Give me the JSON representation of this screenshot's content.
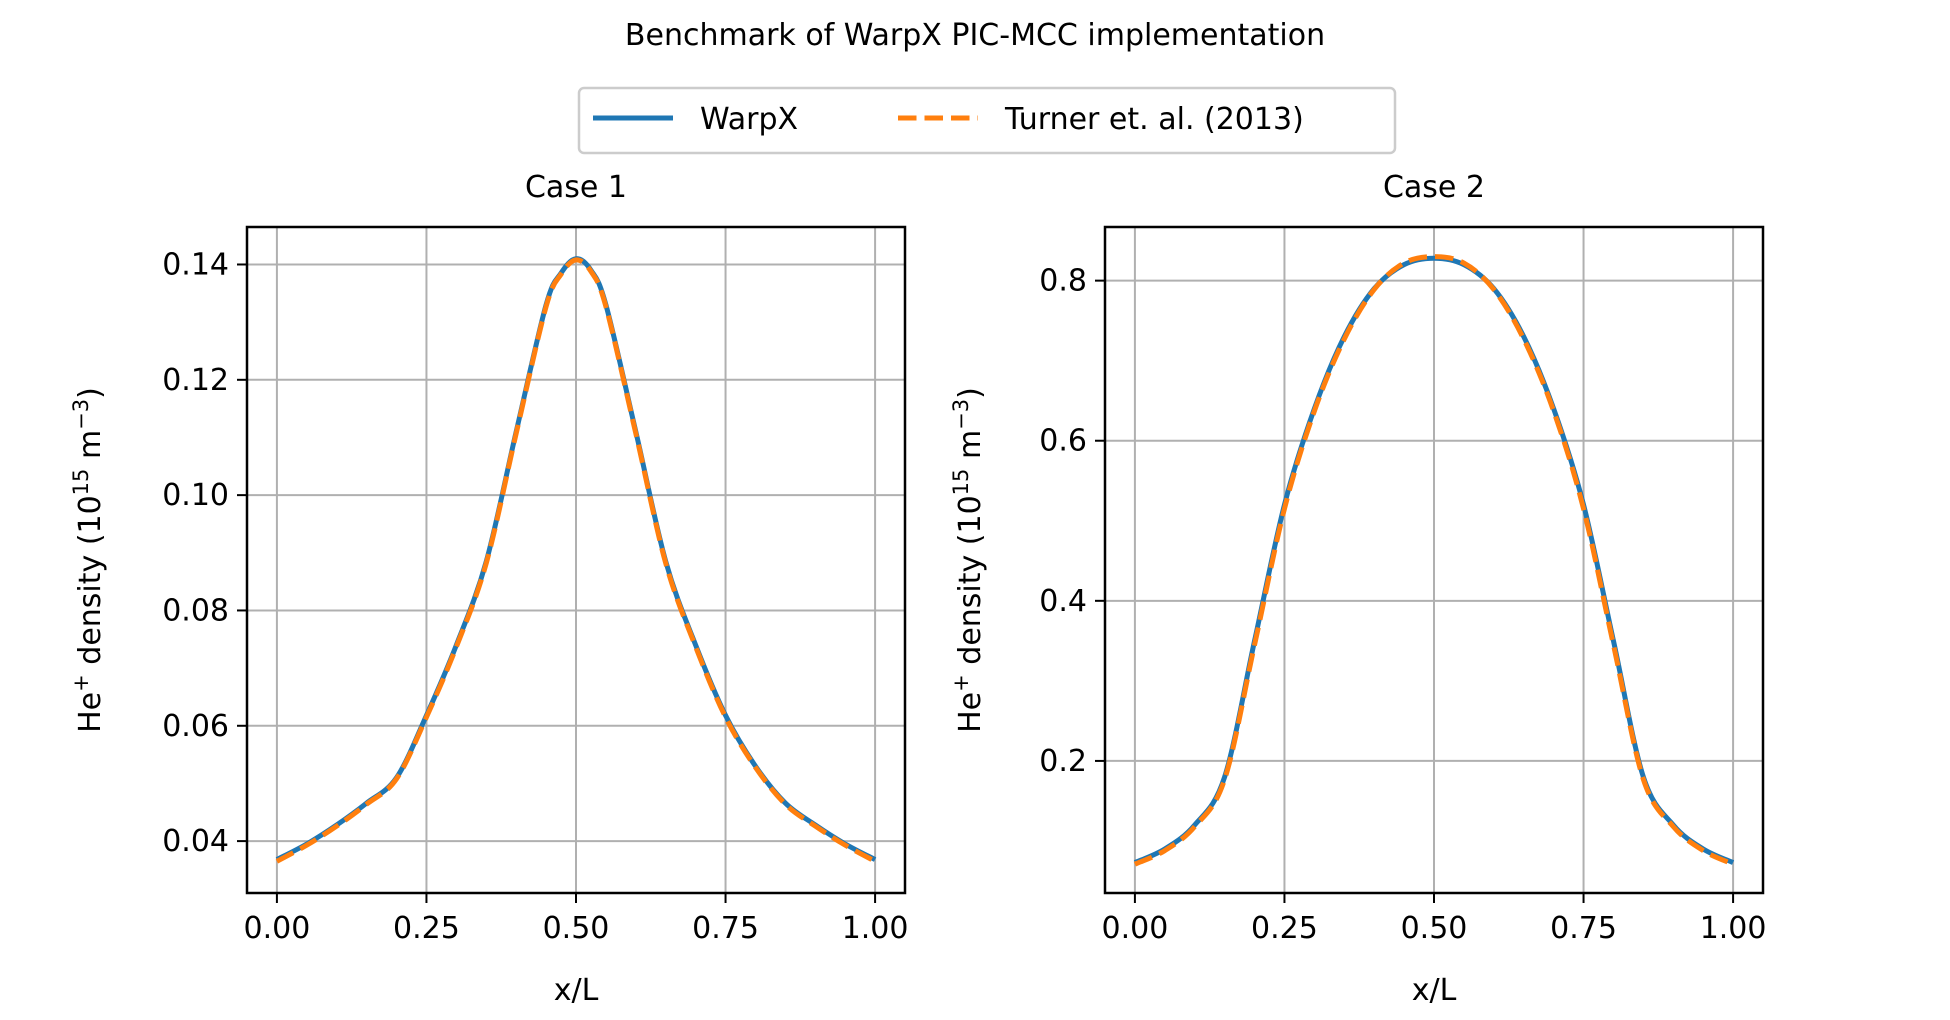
{
  "figure": {
    "title": "Benchmark of WarpX PIC-MCC implementation"
  },
  "legend": {
    "placement": "top-center",
    "entries": [
      {
        "label": "WarpX",
        "style": "solid",
        "color": "#1f77b4"
      },
      {
        "label": "Turner et. al. (2013)",
        "style": "dashed",
        "color": "#ff7f0e"
      }
    ]
  },
  "chart_data": [
    {
      "type": "line",
      "title": "Case 1",
      "xlabel": "x/L",
      "ylabel": {
        "base": "He",
        "sup": "+",
        "mid": " density (10",
        "exp": "15",
        "unit": " m",
        "unit_exp": "−3",
        "close": ")"
      },
      "xlim": [
        -0.05,
        1.05
      ],
      "ylim": [
        0.031,
        0.1465
      ],
      "xticks": [
        0.0,
        0.25,
        0.5,
        0.75,
        1.0
      ],
      "xtick_labels": [
        "0.00",
        "0.25",
        "0.50",
        "0.75",
        "1.00"
      ],
      "yticks": [
        0.04,
        0.06,
        0.08,
        0.1,
        0.12,
        0.14
      ],
      "ytick_labels": [
        "0.04",
        "0.06",
        "0.08",
        "0.10",
        "0.12",
        "0.14"
      ],
      "grid": true,
      "x": [
        0.0,
        0.05,
        0.1,
        0.15,
        0.2,
        0.25,
        0.3,
        0.35,
        0.4,
        0.45,
        0.475,
        0.5,
        0.525,
        0.55,
        0.6,
        0.65,
        0.7,
        0.75,
        0.8,
        0.85,
        0.9,
        0.95,
        1.0
      ],
      "series": [
        {
          "name": "WarpX",
          "values": [
            0.0368,
            0.0395,
            0.0428,
            0.0466,
            0.051,
            0.0618,
            0.074,
            0.0885,
            0.111,
            0.133,
            0.1385,
            0.141,
            0.139,
            0.133,
            0.111,
            0.0885,
            0.074,
            0.0618,
            0.053,
            0.0466,
            0.0428,
            0.0395,
            0.0368
          ]
        },
        {
          "name": "Turner et. al. (2013)",
          "values": [
            0.0365,
            0.0393,
            0.0426,
            0.0464,
            0.0508,
            0.0615,
            0.0737,
            0.0882,
            0.1107,
            0.1327,
            0.1383,
            0.1408,
            0.1388,
            0.1327,
            0.1107,
            0.0882,
            0.0737,
            0.0615,
            0.0528,
            0.0464,
            0.0426,
            0.0393,
            0.0365
          ]
        }
      ]
    },
    {
      "type": "line",
      "title": "Case 2",
      "xlabel": "x/L",
      "ylabel": {
        "base": "He",
        "sup": "+",
        "mid": " density (10",
        "exp": "15",
        "unit": " m",
        "unit_exp": "−3",
        "close": ")"
      },
      "xlim": [
        -0.05,
        1.05
      ],
      "ylim": [
        0.035,
        0.867
      ],
      "xticks": [
        0.0,
        0.25,
        0.5,
        0.75,
        1.0
      ],
      "xtick_labels": [
        "0.00",
        "0.25",
        "0.50",
        "0.75",
        "1.00"
      ],
      "yticks": [
        0.2,
        0.4,
        0.6,
        0.8
      ],
      "ytick_labels": [
        "0.2",
        "0.4",
        "0.6",
        "0.8"
      ],
      "grid": true,
      "x": [
        0.0,
        0.05,
        0.1,
        0.15,
        0.2,
        0.25,
        0.3,
        0.35,
        0.4,
        0.45,
        0.5,
        0.55,
        0.6,
        0.65,
        0.7,
        0.75,
        0.8,
        0.85,
        0.9,
        0.95,
        1.0
      ],
      "series": [
        {
          "name": "WarpX",
          "values": [
            0.073,
            0.09,
            0.12,
            0.18,
            0.35,
            0.52,
            0.64,
            0.73,
            0.79,
            0.82,
            0.828,
            0.82,
            0.79,
            0.73,
            0.64,
            0.52,
            0.35,
            0.18,
            0.12,
            0.09,
            0.073
          ]
        },
        {
          "name": "Turner et. al. (2013)",
          "values": [
            0.071,
            0.088,
            0.118,
            0.177,
            0.345,
            0.515,
            0.637,
            0.727,
            0.789,
            0.822,
            0.83,
            0.822,
            0.789,
            0.727,
            0.637,
            0.515,
            0.345,
            0.177,
            0.118,
            0.088,
            0.071
          ]
        }
      ]
    }
  ]
}
